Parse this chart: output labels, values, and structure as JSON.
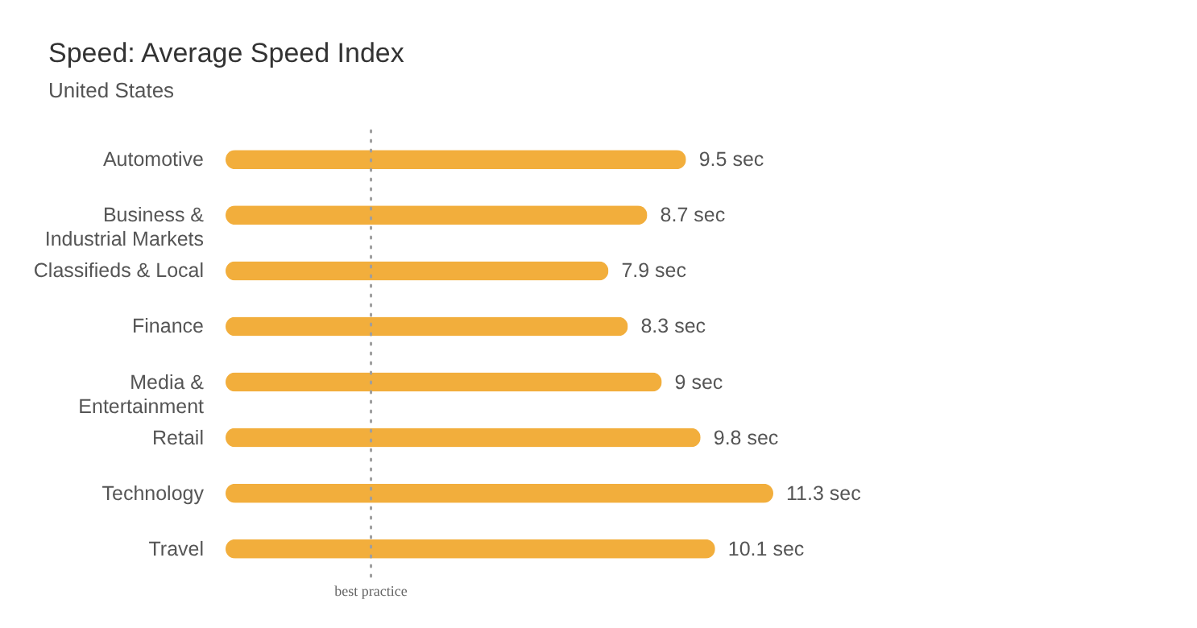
{
  "chart_data": {
    "type": "bar",
    "orientation": "horizontal",
    "title": "Speed: Average Speed Index",
    "subtitle": "United States",
    "categories": [
      "Automotive",
      "Business &\nIndustrial Markets",
      "Classifieds & Local",
      "Finance",
      "Media &\nEntertainment",
      "Retail",
      "Technology",
      "Travel"
    ],
    "values": [
      9.5,
      8.7,
      7.9,
      8.3,
      9,
      9.8,
      11.3,
      10.1
    ],
    "value_labels": [
      "9.5 sec",
      "8.7 sec",
      "7.9 sec",
      "8.3 sec",
      "9 sec",
      "9.8 sec",
      "11.3 sec",
      "10.1 sec"
    ],
    "color": "#f2ae3c",
    "ref_lines": [
      {
        "axis": "x",
        "value": 3,
        "label": "best practice",
        "color": "#9e9e9e",
        "line_style": "dotted"
      }
    ]
  }
}
